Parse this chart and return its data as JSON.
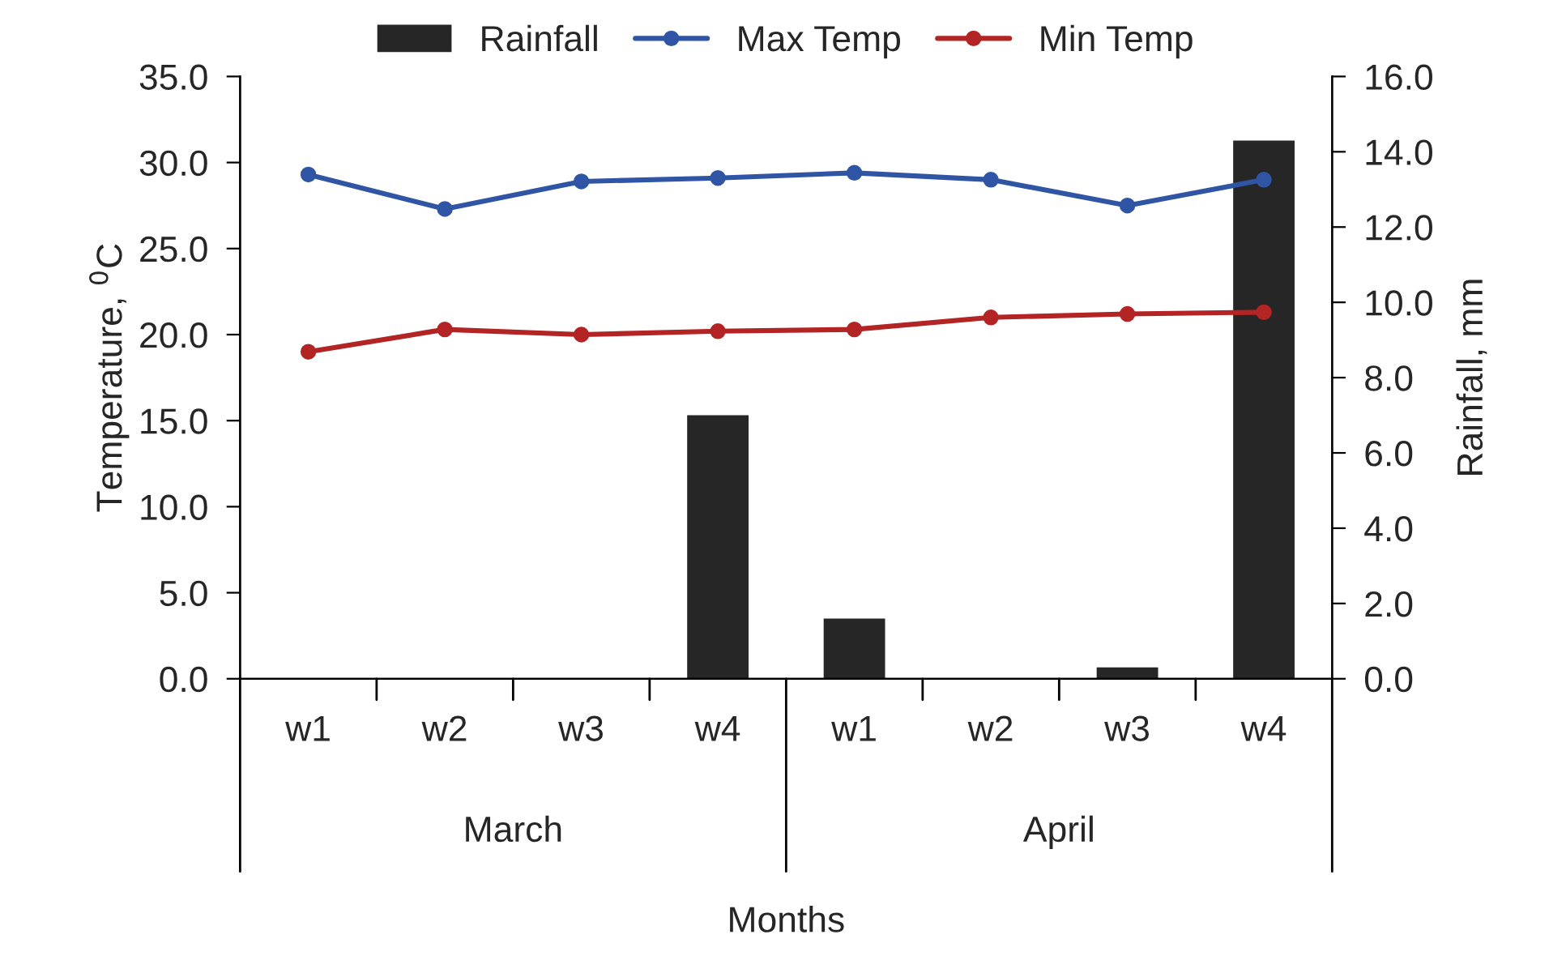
{
  "chart_data": {
    "type": "line",
    "categories": [
      "w1",
      "w2",
      "w3",
      "w4",
      "w1",
      "w2",
      "w3",
      "w4"
    ],
    "xlabel": "Months",
    "ylabel": "Temperature, $^{0}$C",
    "y2label": "Rainfall, mm",
    "annotations": [
      "March",
      "April"
    ],
    "series": [
      {
        "name": "Rainfall",
        "type": "bar",
        "axis": "y2",
        "color": "#262626",
        "values": [
          null,
          null,
          null,
          7.0,
          1.6,
          null,
          0.3,
          14.3
        ]
      },
      {
        "name": "Max Temp",
        "color": "#2f55a4",
        "values": [
          29.3,
          27.3,
          28.9,
          29.1,
          29.4,
          29.0,
          27.5,
          29.0
        ]
      },
      {
        "name": "Min Temp",
        "color": "#b32424",
        "values": [
          19.0,
          20.3,
          20.0,
          20.2,
          20.3,
          21.0,
          21.2,
          21.3
        ]
      }
    ],
    "ylim": [
      0,
      35
    ],
    "yticks": [
      {
        "value": 0,
        "label": "0.0"
      },
      {
        "value": 5,
        "label": "5.0"
      },
      {
        "value": 10,
        "label": "10.0"
      },
      {
        "value": 15,
        "label": "15.0"
      },
      {
        "value": 20,
        "label": "20.0"
      },
      {
        "value": 25,
        "label": "25.0"
      },
      {
        "value": 30,
        "label": "30.0"
      },
      {
        "value": 35,
        "label": "35.0"
      }
    ],
    "y2lim": [
      0,
      16
    ],
    "y2ticks": [
      {
        "value": 0,
        "label": "0.0"
      },
      {
        "value": 2,
        "label": "2.0"
      },
      {
        "value": 4,
        "label": "4.0"
      },
      {
        "value": 6,
        "label": "6.0"
      },
      {
        "value": 8,
        "label": "8.0"
      },
      {
        "value": 10,
        "label": "10.0"
      },
      {
        "value": 12,
        "label": "12.0"
      },
      {
        "value": 14,
        "label": "14.0"
      },
      {
        "value": 16,
        "label": "16.0"
      }
    ],
    "grid": false,
    "legend": "top",
    "marker": "circle",
    "line_style": "solid"
  }
}
